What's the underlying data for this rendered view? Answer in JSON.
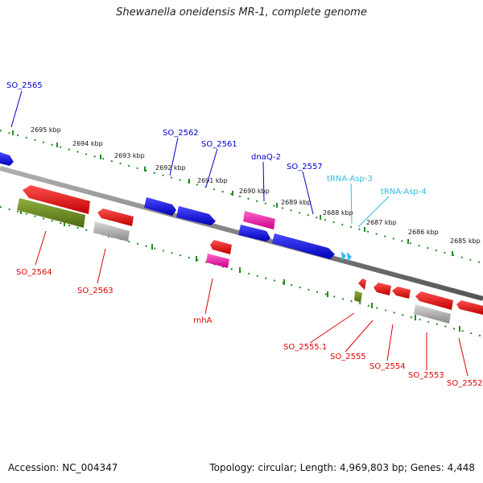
{
  "title": "Shewanella oneidensis MR-1, complete genome",
  "footer": {
    "accession": "Accession: NC_004347",
    "topology": "Topology: circular; Length: 4,969,803 bp; Genes: 4,448"
  },
  "scale_labels": [
    "2695 kbp",
    "2694 kbp",
    "2693 kbp",
    "2692 kbp",
    "2691 kbp",
    "2690 kbp",
    "2689 kbp",
    "2688 kbp",
    "2687 kbp",
    "2686 kbp",
    "2685 kbp"
  ],
  "gene_labels": {
    "forward": [
      "SO_2565",
      "SO_2562",
      "SO_2561",
      "dnaQ-2",
      "SO_2557"
    ],
    "trna": [
      "tRNA-Asp-3",
      "tRNA-Asp-4"
    ],
    "reverse": [
      "SO_2564",
      "SO_2563",
      "rnhA",
      "SO_2555.1",
      "SO_2555",
      "SO_2554",
      "SO_2553",
      "SO_2552"
    ]
  },
  "colors": {
    "forward_cds": "#1010e0",
    "reverse_cds": "#ee1010",
    "pseudo": "#aaaaaa",
    "rna": "#ee2299",
    "olive": "#6b8e23",
    "trna": "#33bbee",
    "ticks": "#228b22",
    "backbone": "#808080",
    "forward_label": "#0000cc",
    "trna_label": "#33bbdd",
    "reverse_label": "#dd0000"
  }
}
